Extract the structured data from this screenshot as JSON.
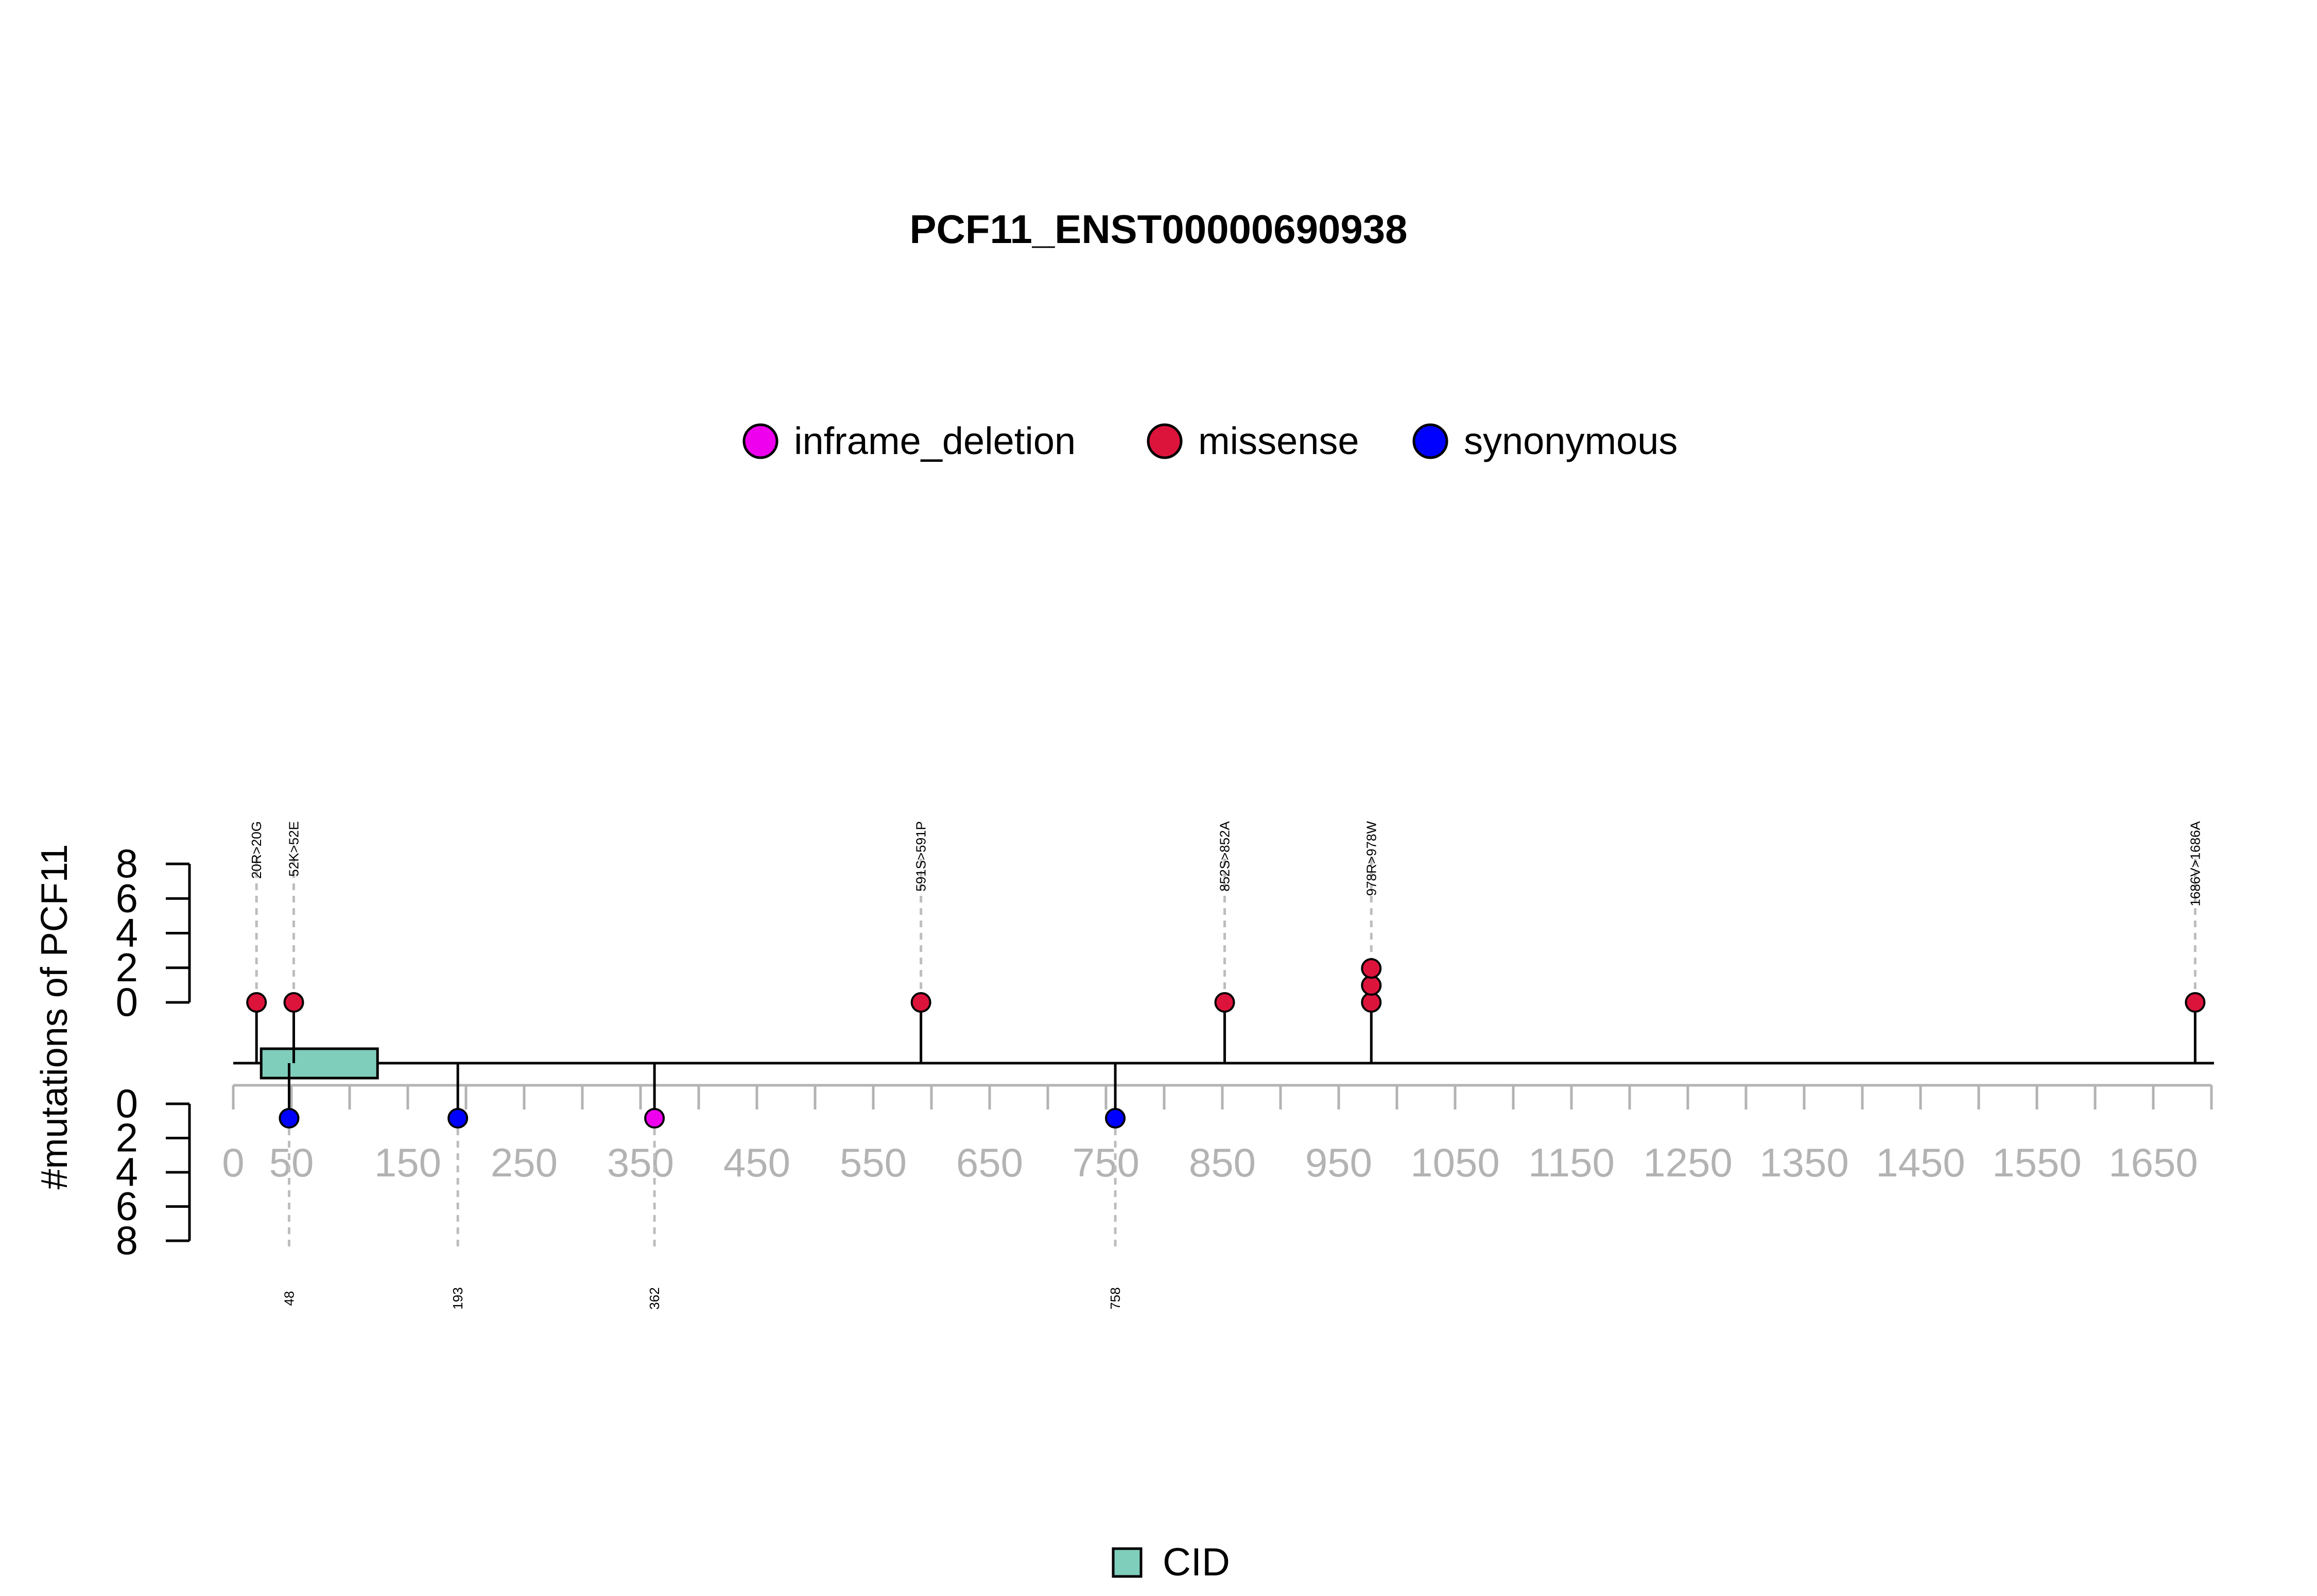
{
  "chart_data": {
    "type": "lollipop",
    "title": "PCF11_ENST00000690938",
    "ylabel": "#mutations of PCF11",
    "x_range": [
      0,
      1700
    ],
    "x_ticks": [
      0,
      50,
      150,
      250,
      350,
      450,
      550,
      650,
      750,
      850,
      950,
      1050,
      1150,
      1250,
      1350,
      1450,
      1550,
      1650
    ],
    "x_minor_step": 50,
    "y_ticks": [
      0,
      2,
      4,
      6,
      8
    ],
    "legend": {
      "placement": "top-center",
      "items": [
        {
          "name": "inframe_deletion",
          "color": "#EE00EE"
        },
        {
          "name": "missense",
          "color": "#DC143C"
        },
        {
          "name": "synonymous",
          "color": "#0000FF"
        }
      ]
    },
    "domain_legend": {
      "placement": "bottom-center",
      "items": [
        {
          "name": "CID",
          "color": "#7FCDBB"
        }
      ]
    },
    "domains": [
      {
        "name": "CID",
        "start": 24,
        "end": 124,
        "color": "#7FCDBB"
      }
    ],
    "top_mutations": [
      {
        "position": 20,
        "label": "20R>20G",
        "type": "missense",
        "count": 1
      },
      {
        "position": 52,
        "label": "52K>52E",
        "type": "missense",
        "count": 1
      },
      {
        "position": 591,
        "label": "591S>591P",
        "type": "missense",
        "count": 1
      },
      {
        "position": 852,
        "label": "852S>852A",
        "type": "missense",
        "count": 1
      },
      {
        "position": 978,
        "label": "978R>978W",
        "type": "missense",
        "count": 3
      },
      {
        "position": 1686,
        "label": "1686V>1686A",
        "type": "missense",
        "count": 1
      }
    ],
    "bottom_mutations": [
      {
        "position": 48,
        "label": "48",
        "type": "synonymous",
        "count": 1
      },
      {
        "position": 193,
        "label": "193",
        "type": "synonymous",
        "count": 1
      },
      {
        "position": 362,
        "label": "362",
        "type": "inframe_deletion",
        "count": 1
      },
      {
        "position": 758,
        "label": "758",
        "type": "synonymous",
        "count": 1
      }
    ]
  }
}
